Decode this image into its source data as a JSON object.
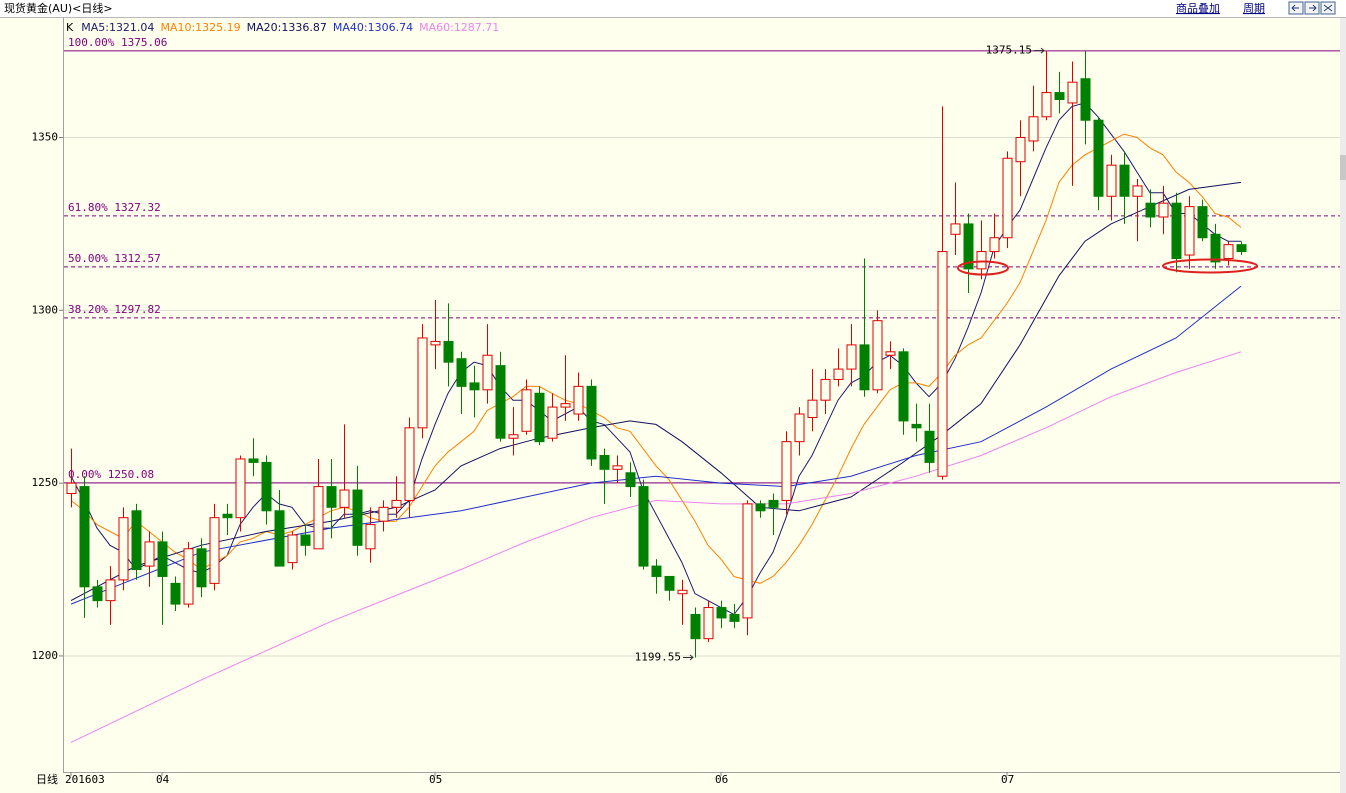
{
  "toolbar": {
    "title": "现货黄金(AU)<日线>",
    "links": [
      "商品叠加",
      "周期"
    ]
  },
  "period_label": "日线",
  "chart_data": {
    "type": "candlestick",
    "series_label": "K",
    "categories": [
      "201603",
      null,
      null,
      null,
      null,
      null,
      null,
      "04",
      null,
      null,
      null,
      null,
      null,
      null,
      null,
      null,
      null,
      null,
      null,
      null,
      null,
      null,
      null,
      null,
      null,
      null,
      null,
      null,
      "05",
      null,
      null,
      null,
      null,
      null,
      null,
      null,
      null,
      null,
      null,
      null,
      null,
      null,
      null,
      null,
      null,
      null,
      null,
      null,
      null,
      null,
      "06",
      null,
      null,
      null,
      null,
      null,
      null,
      null,
      null,
      null,
      null,
      null,
      null,
      null,
      null,
      null,
      null,
      null,
      null,
      null,
      null,
      null,
      "07",
      null,
      null,
      null,
      null,
      null,
      null,
      null,
      null,
      null,
      null,
      null,
      null,
      null,
      null,
      null,
      null,
      null,
      null
    ],
    "open": [
      1247,
      1249,
      1220,
      1216,
      1222,
      1242,
      1226,
      1233,
      1221,
      1215,
      1231,
      1221,
      1241,
      1240,
      1257,
      1256,
      1242,
      1227,
      1235,
      1231,
      1249,
      1243,
      1248,
      1231,
      1239,
      1243,
      1245,
      1266,
      1290,
      1291,
      1286,
      1279,
      1277,
      1284,
      1263,
      1265,
      1276,
      1263,
      1272,
      1270,
      1278,
      1258,
      1254,
      1253,
      1249,
      1226,
      1223,
      1218,
      1212,
      1205,
      1214,
      1212,
      1211,
      1244,
      1245,
      1245,
      1262,
      1269,
      1274,
      1280,
      1283,
      1290,
      1277,
      1287,
      1288,
      1267,
      1265,
      1252,
      1322,
      1325,
      1312,
      1317,
      1321,
      1343,
      1349,
      1356,
      1363,
      1360,
      1367,
      1355,
      1333,
      1342,
      1333,
      1331,
      1327,
      1331,
      1316,
      1330,
      1322,
      1315,
      1319
    ],
    "high": [
      1260,
      1252,
      1222,
      1226,
      1243,
      1244,
      1236,
      1236,
      1223,
      1233,
      1234,
      1244,
      1244,
      1258,
      1263,
      1258,
      1248,
      1236,
      1238,
      1257,
      1257,
      1267,
      1255,
      1243,
      1245,
      1252,
      1269,
      1296,
      1303,
      1302,
      1288,
      1284,
      1296,
      1288,
      1272,
      1280,
      1278,
      1276,
      1287,
      1282,
      1280,
      1260,
      1258,
      1256,
      1251,
      1228,
      1223,
      1222,
      1214,
      1216,
      1216,
      1215,
      1245,
      1245,
      1247,
      1265,
      1272,
      1283,
      1283,
      1289,
      1296,
      1315,
      1300,
      1291,
      1289,
      1273,
      1273,
      1359,
      1337,
      1328,
      1326,
      1328,
      1346,
      1355,
      1365,
      1375.15,
      1369,
      1372,
      1375,
      1356,
      1345,
      1346,
      1338,
      1335,
      1336,
      1334,
      1333,
      1332,
      1325,
      1320,
      1320
    ],
    "low": [
      1243,
      1211,
      1214,
      1209,
      1219,
      1222,
      1220,
      1209,
      1213,
      1214,
      1217,
      1219,
      1235,
      1236,
      1252,
      1238,
      1226,
      1225,
      1229,
      1231,
      1234,
      1240,
      1229,
      1227,
      1236,
      1240,
      1240,
      1263,
      1283,
      1278,
      1270,
      1269,
      1273,
      1262,
      1258,
      1264,
      1261,
      1262,
      1268,
      1268,
      1255,
      1244,
      1250,
      1246,
      1225,
      1218,
      1216,
      1209,
      1199.55,
      1204,
      1208,
      1208,
      1206,
      1240,
      1235,
      1241,
      1258,
      1265,
      1270,
      1278,
      1278,
      1275,
      1276,
      1283,
      1264,
      1262,
      1253,
      1251,
      1316,
      1305,
      1309,
      1315,
      1318,
      1333,
      1346,
      1355,
      1357,
      1336,
      1348,
      1329,
      1326,
      1325,
      1320,
      1324,
      1322,
      1311,
      1312,
      1320,
      1312,
      1313,
      1316
    ],
    "close": [
      1250,
      1220,
      1216,
      1222,
      1240,
      1225,
      1233,
      1223,
      1215,
      1231,
      1220,
      1240,
      1240,
      1257,
      1256,
      1242,
      1226,
      1235,
      1232,
      1249,
      1243,
      1248,
      1232,
      1238,
      1243,
      1245,
      1266,
      1292,
      1291,
      1285,
      1278,
      1277,
      1287,
      1263,
      1264,
      1277,
      1262,
      1272,
      1273,
      1278,
      1257,
      1254,
      1255,
      1249,
      1226,
      1223,
      1219,
      1219,
      1205,
      1214,
      1211,
      1210,
      1244,
      1242,
      1243,
      1262,
      1270,
      1274,
      1280,
      1283,
      1290,
      1277,
      1297,
      1288,
      1268,
      1266,
      1256,
      1317,
      1325,
      1312,
      1317,
      1321,
      1344,
      1350,
      1356,
      1363,
      1361,
      1366,
      1355,
      1333,
      1342,
      1333,
      1336,
      1327,
      1331,
      1315,
      1330,
      1321,
      1314,
      1319,
      1317
    ],
    "up_color": "#e00000",
    "down_color": "#008000",
    "series": [
      {
        "name": "MA5:1321.04",
        "color": "#1a1a70",
        "values": [
          1252,
          1245,
          1237,
          1232,
          1230,
          1225,
          1227,
          1229,
          1227,
          1225,
          1224,
          1226,
          1229,
          1238,
          1243,
          1247,
          1244,
          1243,
          1238,
          1237,
          1237,
          1241,
          1241,
          1242,
          1241,
          1241,
          1245,
          1257,
          1267,
          1276,
          1282,
          1285,
          1284,
          1278,
          1274,
          1274,
          1271,
          1268,
          1270,
          1272,
          1268,
          1267,
          1263,
          1259,
          1248,
          1241,
          1234,
          1227,
          1218,
          1216,
          1214,
          1212,
          1217,
          1224,
          1230,
          1240,
          1252,
          1258,
          1266,
          1274,
          1279,
          1281,
          1285,
          1287,
          1284,
          1279,
          1275,
          1279,
          1286,
          1295,
          1305,
          1318,
          1324,
          1329,
          1338,
          1347,
          1355,
          1359,
          1360,
          1356,
          1351,
          1346,
          1340,
          1334,
          1334,
          1328,
          1328,
          1325,
          1322,
          1320,
          1320
        ]
      },
      {
        "name": "MA10:1325.19",
        "color": "#ff8000",
        "values": [
          1245,
          1242,
          1238,
          1236,
          1234,
          1239,
          1236,
          1233,
          1230,
          1228,
          1225,
          1227,
          1229,
          1233,
          1234,
          1236,
          1235,
          1236,
          1238,
          1240,
          1242,
          1243,
          1242,
          1240,
          1239,
          1239,
          1243,
          1249,
          1255,
          1259,
          1262,
          1265,
          1271,
          1273,
          1275,
          1278,
          1278,
          1276,
          1274,
          1273,
          1271,
          1269,
          1266,
          1265,
          1260,
          1255,
          1251,
          1245,
          1239,
          1232,
          1228,
          1223,
          1222,
          1221,
          1223,
          1227,
          1232,
          1238,
          1245,
          1252,
          1260,
          1267,
          1272,
          1277,
          1279,
          1279,
          1278,
          1282,
          1287,
          1290,
          1292,
          1297,
          1302,
          1308,
          1317,
          1326,
          1337,
          1342,
          1345,
          1347,
          1349,
          1351,
          1350,
          1347,
          1345,
          1340,
          1337,
          1333,
          1328,
          1327,
          1324
        ]
      },
      {
        "name": "MA20:1336.87",
        "color": "#101060",
        "x": [
          0,
          5,
          10,
          15,
          20,
          25,
          28,
          30,
          33,
          36,
          40,
          43,
          45,
          47,
          50,
          53,
          56,
          60,
          64,
          67,
          70,
          73,
          76,
          78,
          80,
          83,
          86,
          90
        ],
        "values": [
          1216,
          1226,
          1232,
          1236,
          1239,
          1243,
          1248,
          1255,
          1260,
          1263,
          1266,
          1268,
          1267,
          1262,
          1253,
          1243,
          1242,
          1246,
          1256,
          1264,
          1273,
          1290,
          1310,
          1320,
          1325,
          1330,
          1335,
          1337
        ]
      },
      {
        "name": "MA40:1306.74",
        "color": "#2030c8",
        "x": [
          0,
          10,
          20,
          30,
          40,
          45,
          50,
          55,
          60,
          65,
          70,
          75,
          80,
          85,
          90
        ],
        "values": [
          1215,
          1230,
          1237,
          1242,
          1250,
          1252,
          1250,
          1249,
          1252,
          1258,
          1262,
          1272,
          1283,
          1292,
          1307
        ]
      },
      {
        "name": "MA60:1287.71",
        "color": "#ee82ee",
        "x": [
          0,
          10,
          20,
          30,
          35,
          40,
          45,
          50,
          55,
          60,
          65,
          70,
          75,
          80,
          85,
          90
        ],
        "values": [
          1175,
          1193,
          1210,
          1225,
          1233,
          1240,
          1245,
          1244,
          1244,
          1247,
          1252,
          1258,
          1266,
          1275,
          1282,
          1288
        ]
      }
    ],
    "ylim": [
      1167,
      1384
    ],
    "yticks": [
      1200,
      1250,
      1300,
      1350
    ],
    "grid": true,
    "levels": [
      {
        "value": 1375.06,
        "label": "100.00% 1375.06",
        "dashed": false
      },
      {
        "value": 1327.32,
        "label": "61.80% 1327.32",
        "dashed": true
      },
      {
        "value": 1312.57,
        "label": "50.00% 1312.57",
        "dashed": true
      },
      {
        "value": 1297.82,
        "label": "38.20% 1297.82",
        "dashed": true
      },
      {
        "value": 1250.08,
        "label": "0.00% 1250.08",
        "dashed": false
      }
    ],
    "level_color": "#800080",
    "annotations": [
      {
        "value": 1375.15,
        "index": 75
      },
      {
        "value": 1199.55,
        "index": 48
      }
    ]
  }
}
